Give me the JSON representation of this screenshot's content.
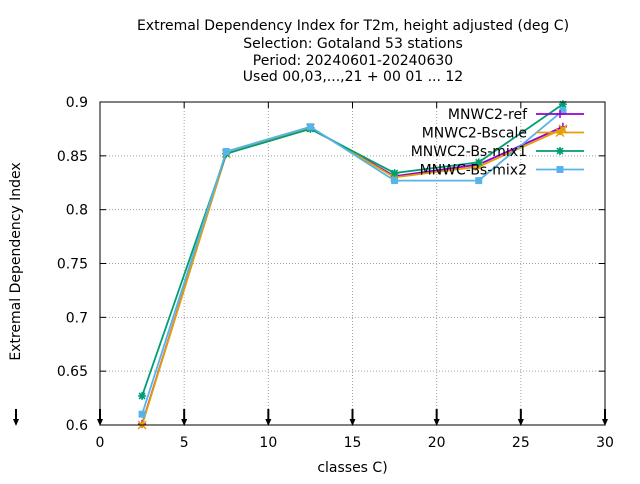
{
  "chart_data": {
    "type": "line",
    "title": [
      "Extremal Dependency Index  for T2m, height adjusted (deg C)",
      "Selection: Gotaland     53 stations",
      "Period: 20240601-20240630",
      "Used 00,03,...,21 + 00 01 ... 12"
    ],
    "xlabel": "classes C)",
    "ylabel": "Extremal Dependency Index",
    "xlim": [
      0,
      30
    ],
    "ylim": [
      0.6,
      0.9
    ],
    "xticks": [
      0,
      5,
      10,
      15,
      20,
      25,
      30
    ],
    "yticks": [
      0.6,
      0.65,
      0.7,
      0.75,
      0.8,
      0.85,
      0.9
    ],
    "xtick_labels": [
      "0",
      "5",
      "10",
      "15",
      "20",
      "25",
      "30"
    ],
    "ytick_labels": [
      "0.6",
      "0.65",
      "0.7",
      "0.75",
      "0.8",
      "0.85",
      "0.9"
    ],
    "grid": true,
    "legend_position": "top-right",
    "x": [
      2.5,
      7.5,
      12.5,
      17.5,
      22.5,
      27.5
    ],
    "series": [
      {
        "name": "MNWC2-ref",
        "color": "#9400d3",
        "marker": "plus",
        "values": [
          0.601,
          0.852,
          0.876,
          0.831,
          0.842,
          0.877
        ]
      },
      {
        "name": "MNWC2-Bscale",
        "color": "#e69f00",
        "marker": "x",
        "values": [
          0.6,
          0.852,
          0.876,
          0.83,
          0.84,
          0.875
        ]
      },
      {
        "name": "MNWC2-Bs-mix1",
        "color": "#009e73",
        "marker": "star",
        "values": [
          0.627,
          0.852,
          0.875,
          0.834,
          0.844,
          0.898
        ]
      },
      {
        "name": "MNWC-Bs-mix2",
        "color": "#56b4e9",
        "marker": "box",
        "values": [
          0.61,
          0.854,
          0.877,
          0.827,
          0.827,
          0.892
        ]
      }
    ],
    "x_arrow_ticks": [
      0,
      5,
      10,
      15,
      20,
      25,
      30
    ]
  }
}
